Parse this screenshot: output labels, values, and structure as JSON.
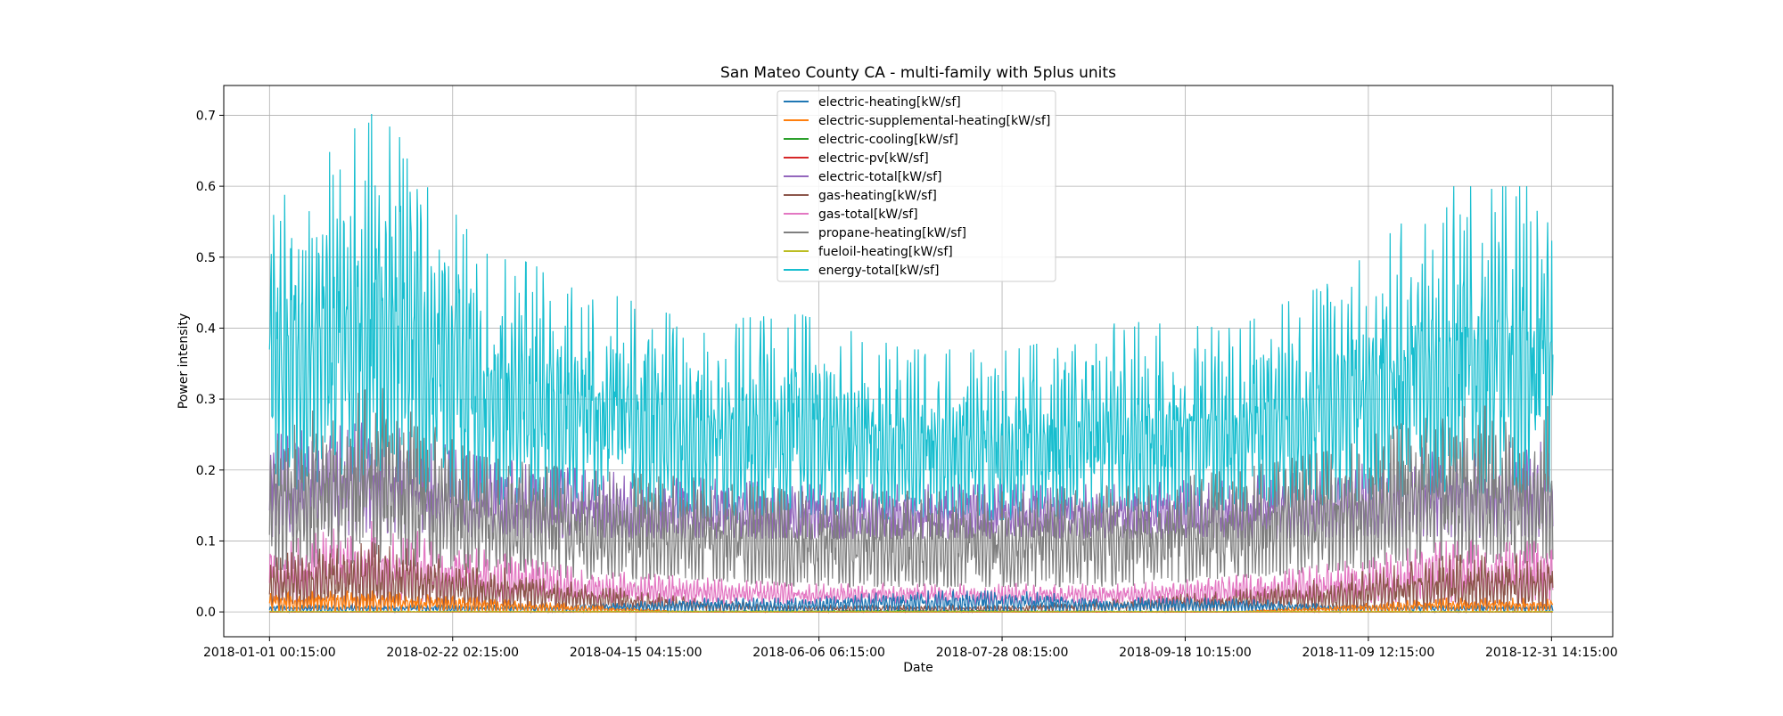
{
  "chart_data": {
    "type": "line",
    "title": "San Mateo County CA - multi-family with 5plus units",
    "xlabel": "Date",
    "ylabel": "Power intensity",
    "x_range": [
      "2018-01-01 00:15:00",
      "2018-12-31 23:45:00"
    ],
    "xlim": [
      "2017-12-19 00:00:00",
      "2019-01-18 00:00:00"
    ],
    "ylim": [
      -0.035,
      0.742
    ],
    "grid": true,
    "legend_placement": "upper center",
    "x_tick_labels": [
      "2018-01-01 00:15:00",
      "2018-02-22 02:15:00",
      "2018-04-15 04:15:00",
      "2018-06-06 06:15:00",
      "2018-07-28 08:15:00",
      "2018-09-18 10:15:00",
      "2018-11-09 12:15:00",
      "2018-12-31 14:15:00"
    ],
    "y_tick_labels": [
      "0.0",
      "0.1",
      "0.2",
      "0.3",
      "0.4",
      "0.5",
      "0.6",
      "0.7"
    ],
    "y_ticks": [
      0,
      0.1,
      0.2,
      0.3,
      0.4,
      0.5,
      0.6,
      0.7
    ],
    "series": [
      {
        "name": "electric-heating[kW/sf]",
        "color": "#1f77b4",
        "approx_envelope": {
          "month_starts": [
            "2018-01-01",
            "2018-02-01",
            "2018-03-01",
            "2018-04-01",
            "2018-05-01",
            "2018-06-01",
            "2018-07-01",
            "2018-08-01",
            "2018-09-01",
            "2018-10-01",
            "2018-11-01",
            "2018-12-01"
          ],
          "min": [
            0,
            0,
            0,
            0,
            0,
            0,
            0,
            0,
            0,
            0,
            0,
            0
          ],
          "max": [
            0.01,
            0.01,
            0.01,
            0.01,
            0.02,
            0.02,
            0.03,
            0.03,
            0.02,
            0.02,
            0.01,
            0.01
          ]
        }
      },
      {
        "name": "electric-supplemental-heating[kW/sf]",
        "color": "#ff7f0e",
        "approx_envelope": {
          "month_starts": [
            "2018-01-01",
            "2018-02-01",
            "2018-03-01",
            "2018-04-01",
            "2018-05-01",
            "2018-06-01",
            "2018-07-01",
            "2018-08-01",
            "2018-09-01",
            "2018-10-01",
            "2018-11-01",
            "2018-12-01"
          ],
          "min": [
            0,
            0,
            0,
            0,
            0,
            0,
            0,
            0,
            0,
            0,
            0,
            0
          ],
          "max": [
            0.03,
            0.03,
            0.02,
            0.01,
            0,
            0,
            0,
            0,
            0,
            0,
            0.01,
            0.02
          ]
        }
      },
      {
        "name": "electric-cooling[kW/sf]",
        "color": "#2ca02c",
        "approx_envelope": {
          "month_starts": [
            "2018-01-01",
            "2018-07-01",
            "2018-12-01"
          ],
          "min": [
            0,
            0,
            0
          ],
          "max": [
            0,
            0.002,
            0
          ]
        }
      },
      {
        "name": "electric-pv[kW/sf]",
        "color": "#d62728",
        "approx_envelope": {
          "month_starts": [
            "2018-01-01",
            "2018-12-01"
          ],
          "min": [
            0,
            0
          ],
          "max": [
            0,
            0
          ]
        }
      },
      {
        "name": "electric-total[kW/sf]",
        "color": "#9467bd",
        "approx_envelope": {
          "month_starts": [
            "2018-01-01",
            "2018-02-01",
            "2018-03-01",
            "2018-04-01",
            "2018-05-01",
            "2018-06-01",
            "2018-07-01",
            "2018-08-01",
            "2018-09-01",
            "2018-10-01",
            "2018-11-01",
            "2018-12-01"
          ],
          "min": [
            0.1,
            0.1,
            0.1,
            0.1,
            0.1,
            0.1,
            0.1,
            0.1,
            0.1,
            0.1,
            0.1,
            0.1
          ],
          "max": [
            0.25,
            0.27,
            0.22,
            0.2,
            0.19,
            0.18,
            0.18,
            0.18,
            0.18,
            0.19,
            0.2,
            0.24
          ]
        }
      },
      {
        "name": "gas-heating[kW/sf]",
        "color": "#8c564b",
        "approx_envelope": {
          "month_starts": [
            "2018-01-01",
            "2018-02-01",
            "2018-03-01",
            "2018-04-01",
            "2018-05-01",
            "2018-06-01",
            "2018-07-01",
            "2018-08-01",
            "2018-09-01",
            "2018-10-01",
            "2018-11-01",
            "2018-12-01"
          ],
          "min": [
            0,
            0,
            0,
            0,
            0,
            0,
            0,
            0,
            0,
            0,
            0,
            0
          ],
          "max": [
            0.08,
            0.1,
            0.07,
            0.04,
            0.02,
            0.01,
            0.01,
            0.01,
            0.02,
            0.03,
            0.05,
            0.08
          ]
        }
      },
      {
        "name": "gas-total[kW/sf]",
        "color": "#e377c2",
        "approx_envelope": {
          "month_starts": [
            "2018-01-01",
            "2018-02-01",
            "2018-03-01",
            "2018-04-01",
            "2018-05-01",
            "2018-06-01",
            "2018-07-01",
            "2018-08-01",
            "2018-09-01",
            "2018-10-01",
            "2018-11-01",
            "2018-12-01"
          ],
          "min": [
            0.01,
            0.01,
            0.01,
            0.01,
            0.01,
            0.01,
            0.01,
            0.01,
            0.01,
            0.01,
            0.01,
            0.01
          ],
          "max": [
            0.1,
            0.13,
            0.09,
            0.06,
            0.05,
            0.04,
            0.04,
            0.04,
            0.04,
            0.05,
            0.07,
            0.1
          ]
        }
      },
      {
        "name": "propane-heating[kW/sf]",
        "color": "#7f7f7f",
        "approx_envelope": {
          "month_starts": [
            "2018-01-01",
            "2018-02-01",
            "2018-03-01",
            "2018-04-01",
            "2018-05-01",
            "2018-06-01",
            "2018-07-01",
            "2018-08-01",
            "2018-09-01",
            "2018-10-01",
            "2018-11-01",
            "2018-12-01"
          ],
          "min": [
            0.05,
            0.06,
            0.05,
            0.04,
            0.04,
            0.03,
            0.03,
            0.03,
            0.03,
            0.04,
            0.05,
            0.06
          ],
          "max": [
            0.26,
            0.32,
            0.22,
            0.2,
            0.19,
            0.17,
            0.17,
            0.17,
            0.18,
            0.2,
            0.23,
            0.29
          ]
        }
      },
      {
        "name": "fueloil-heating[kW/sf]",
        "color": "#bcbd22",
        "approx_envelope": {
          "month_starts": [
            "2018-01-01",
            "2018-12-01"
          ],
          "min": [
            0,
            0
          ],
          "max": [
            0.001,
            0.001
          ]
        }
      },
      {
        "name": "energy-total[kW/sf]",
        "color": "#17becf",
        "approx_envelope": {
          "month_starts": [
            "2018-01-01",
            "2018-02-01",
            "2018-03-01",
            "2018-04-01",
            "2018-05-01",
            "2018-06-01",
            "2018-07-01",
            "2018-08-01",
            "2018-09-01",
            "2018-10-01",
            "2018-11-01",
            "2018-12-01"
          ],
          "min": [
            0.15,
            0.16,
            0.14,
            0.13,
            0.12,
            0.12,
            0.12,
            0.12,
            0.12,
            0.13,
            0.14,
            0.15
          ],
          "max": [
            0.58,
            0.71,
            0.52,
            0.46,
            0.41,
            0.42,
            0.37,
            0.37,
            0.41,
            0.4,
            0.47,
            0.6
          ]
        }
      }
    ]
  }
}
